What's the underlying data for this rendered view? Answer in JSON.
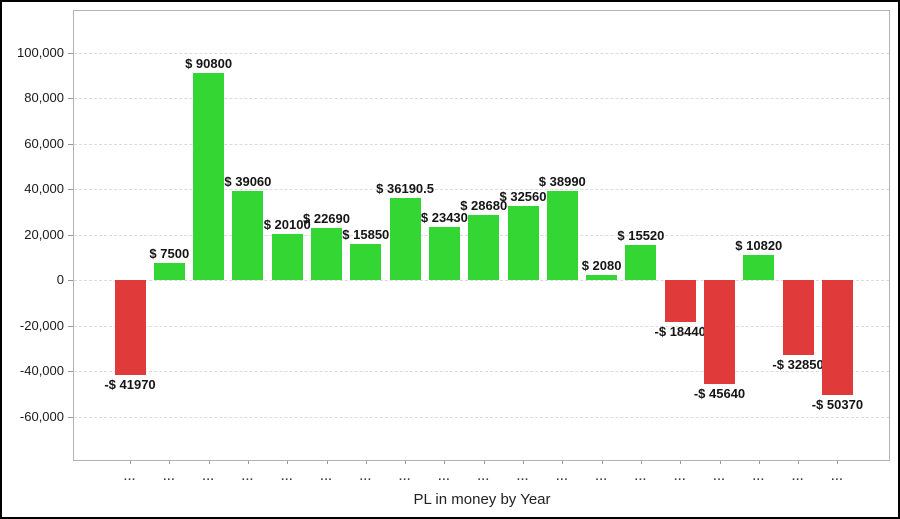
{
  "chart_data": {
    "type": "bar",
    "title": "",
    "xlabel": "PL in money by Year",
    "ylabel": "",
    "legend": false,
    "grid": "horizontal-dashed",
    "ylim": [
      -79000,
      118700
    ],
    "yticks": [
      {
        "value": 100000,
        "label": "100,000"
      },
      {
        "value": 80000,
        "label": "80,000"
      },
      {
        "value": 60000,
        "label": "60,000"
      },
      {
        "value": 40000,
        "label": "40,000"
      },
      {
        "value": 20000,
        "label": "20,000"
      },
      {
        "value": 0,
        "label": "0"
      },
      {
        "value": -20000,
        "label": "-20,000"
      },
      {
        "value": -40000,
        "label": "-40,000"
      },
      {
        "value": -60000,
        "label": "-60,000"
      }
    ],
    "categories": [
      "...",
      "...",
      "...",
      "...",
      "...",
      "...",
      "...",
      "...",
      "...",
      "...",
      "...",
      "...",
      "...",
      "...",
      "...",
      "...",
      "...",
      "...",
      "..."
    ],
    "bars": [
      {
        "value": -41970,
        "label": "-$ 41970"
      },
      {
        "value": 7500,
        "label": "$ 7500"
      },
      {
        "value": 90800,
        "label": "$ 90800"
      },
      {
        "value": 39060,
        "label": "$ 39060"
      },
      {
        "value": 20100,
        "label": "$ 20100"
      },
      {
        "value": 22690,
        "label": "$ 22690"
      },
      {
        "value": 15850,
        "label": "$ 15850"
      },
      {
        "value": 36190.5,
        "label": "$ 36190.5"
      },
      {
        "value": 23430,
        "label": "$ 23430"
      },
      {
        "value": 28680,
        "label": "$ 28680"
      },
      {
        "value": 32560,
        "label": "$ 32560"
      },
      {
        "value": 38990,
        "label": "$ 38990"
      },
      {
        "value": 2080,
        "label": "$ 2080"
      },
      {
        "value": 15520,
        "label": "$ 15520"
      },
      {
        "value": -18440,
        "label": "-$ 18440"
      },
      {
        "value": -45640,
        "label": "-$ 45640"
      },
      {
        "value": 10820,
        "label": "$ 10820"
      },
      {
        "value": -32850,
        "label": "-$ 32850"
      },
      {
        "value": -50370,
        "label": "-$ 50370"
      }
    ],
    "colors": {
      "positive": "#33d633",
      "negative": "#e03a3a",
      "gridline": "#dcdcdc",
      "axis_border": "#b3b3b3",
      "tick": "#9a9a9a",
      "window_border": "#000000",
      "background": "#ffffff"
    }
  }
}
